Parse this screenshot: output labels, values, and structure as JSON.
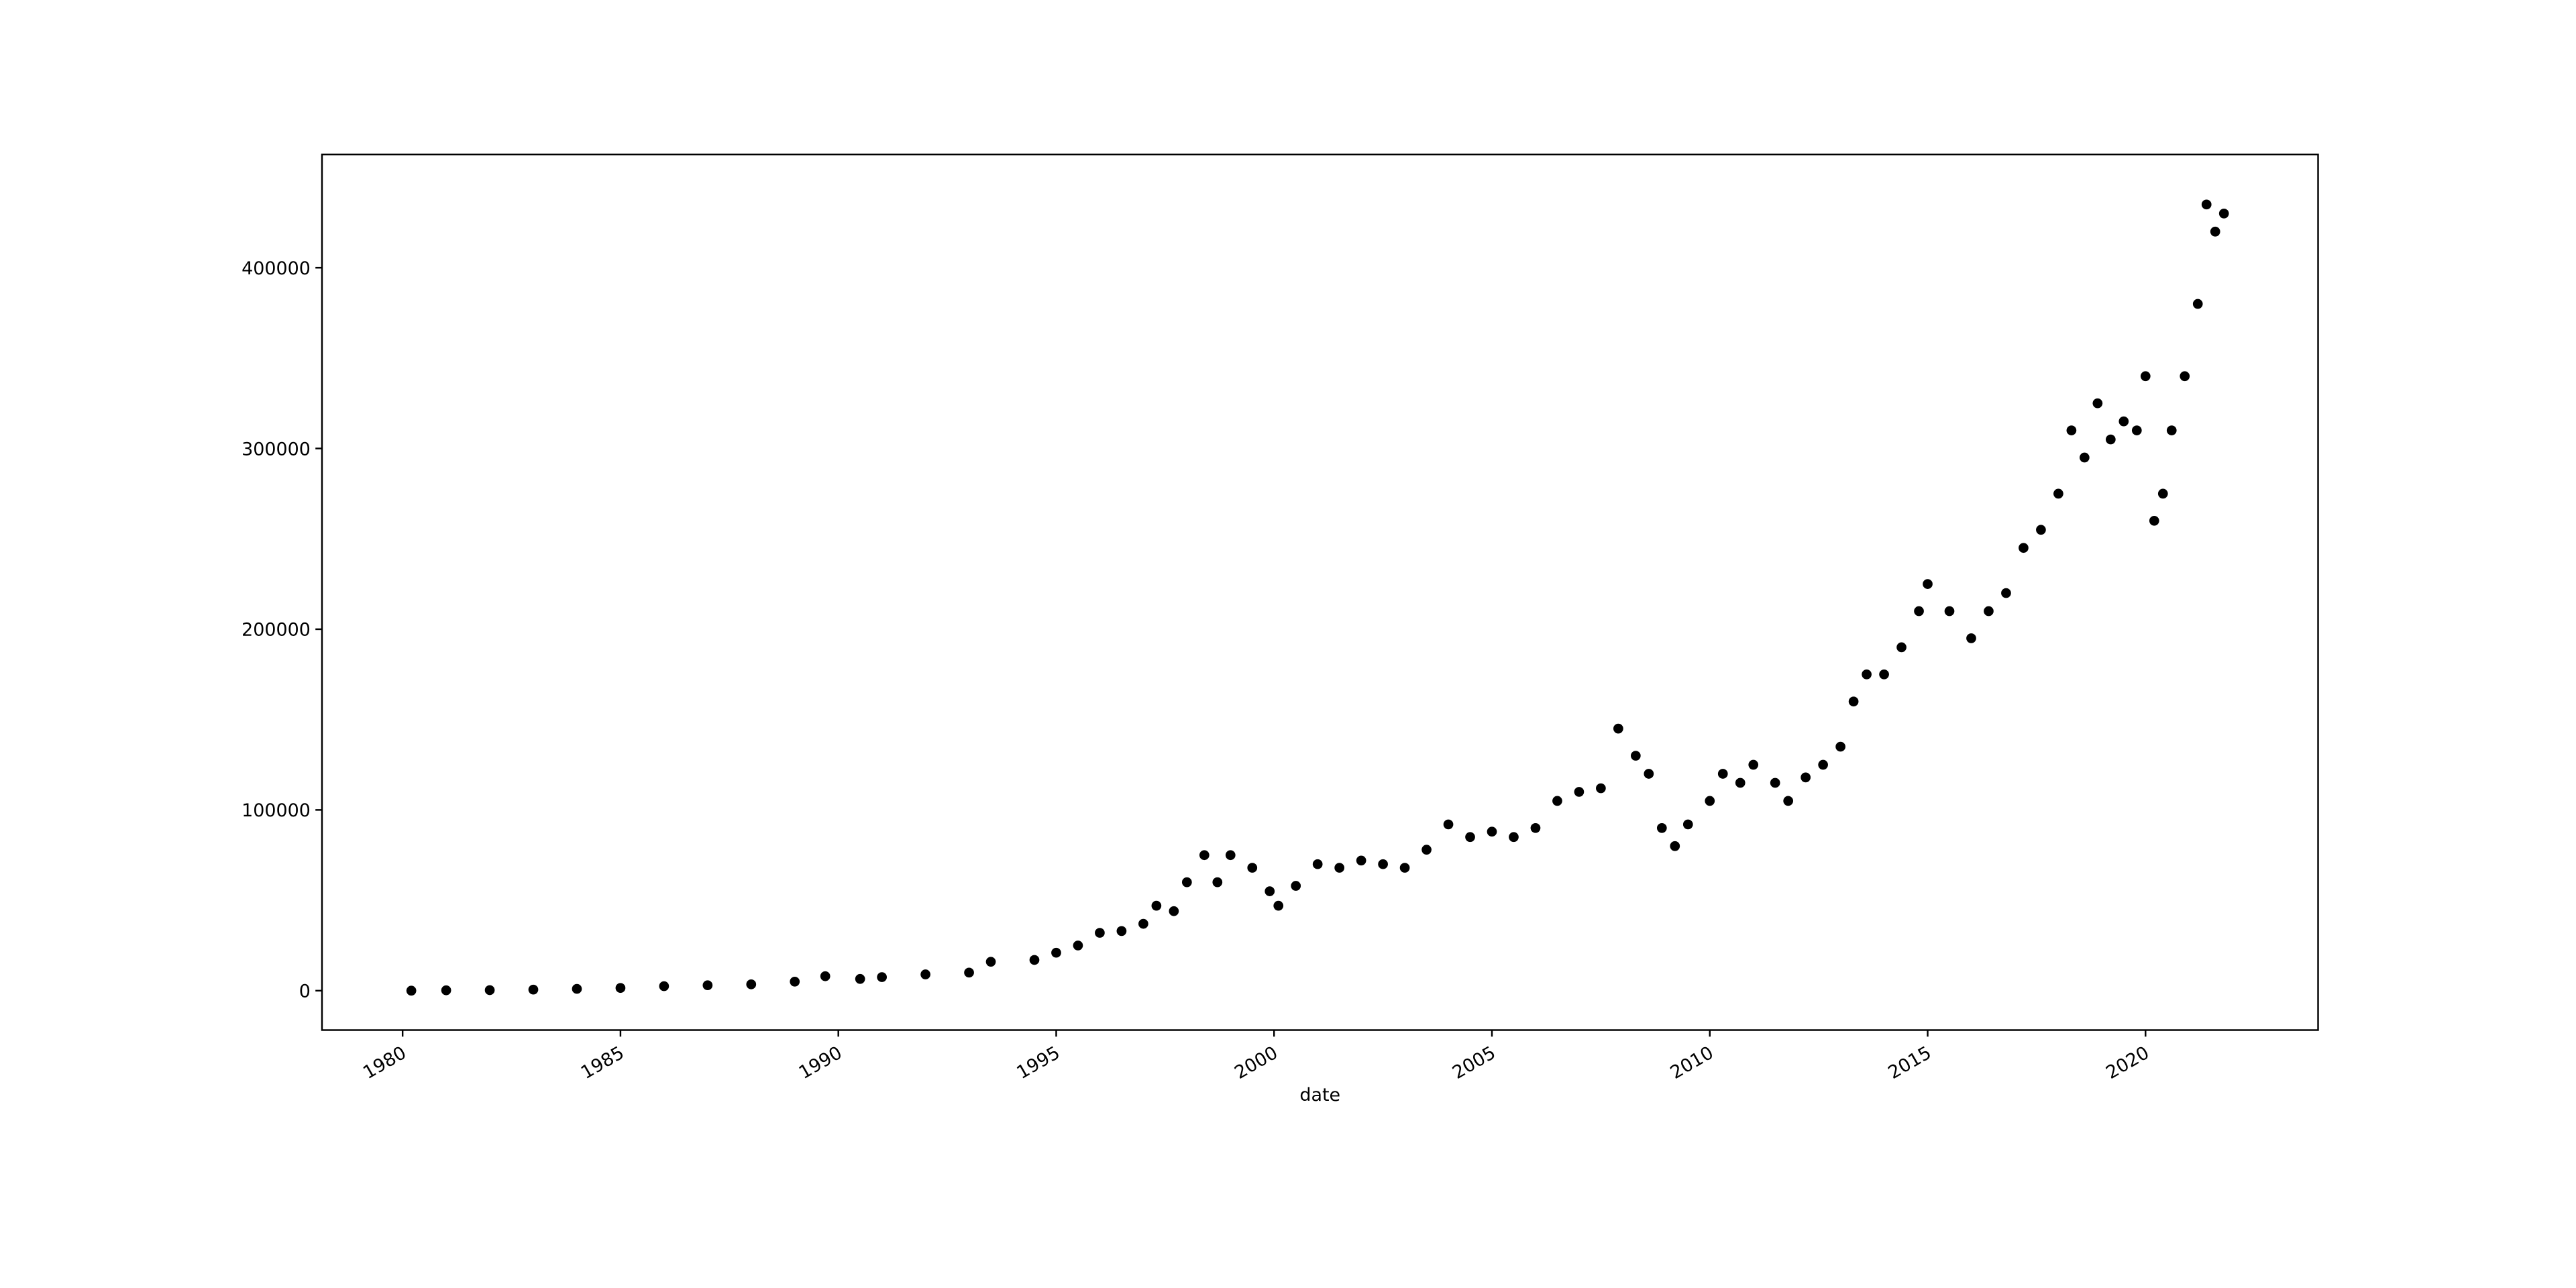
{
  "chart_data": {
    "type": "scatter",
    "x_label": "date",
    "color": "#000000",
    "x": [
      1980.2,
      1981,
      1982,
      1983,
      1984,
      1985,
      1986,
      1987,
      1988,
      1989,
      1989.7,
      1990.5,
      1991,
      1992,
      1993,
      1993.5,
      1994.5,
      1995,
      1995.5,
      1996,
      1996.5,
      1997,
      1997.3,
      1997.7,
      1998,
      1998.4,
      1998.7,
      1999,
      1999.5,
      1999.9,
      2000.1,
      2000.5,
      2001,
      2001.5,
      2002,
      2002.5,
      2003,
      2003.5,
      2004,
      2004.5,
      2005,
      2005.5,
      2006,
      2006.5,
      2007,
      2007.5,
      2007.9,
      2008.3,
      2008.6,
      2008.9,
      2009.2,
      2009.5,
      2010,
      2010.3,
      2010.7,
      2011,
      2011.5,
      2011.8,
      2012.2,
      2012.6,
      2013,
      2013.3,
      2013.6,
      2014,
      2014.4,
      2014.8,
      2015,
      2015.5,
      2016,
      2016.4,
      2016.8,
      2017.2,
      2017.6,
      2018,
      2018.3,
      2018.6,
      2018.9,
      2019.2,
      2019.5,
      2019.8,
      2020,
      2020.2,
      2020.4,
      2020.6,
      2020.9,
      2021.2,
      2021.4,
      2021.6,
      2021.8
    ],
    "values": [
      0,
      200,
      300,
      600,
      1000,
      1500,
      2500,
      3000,
      3500,
      5000,
      8000,
      6500,
      7500,
      9000,
      10000,
      16000,
      17000,
      21000,
      25000,
      32000,
      33000,
      37000,
      47000,
      44000,
      60000,
      75000,
      60000,
      75000,
      68000,
      55000,
      47000,
      58000,
      70000,
      68000,
      72000,
      70000,
      68000,
      78000,
      92000,
      85000,
      88000,
      85000,
      90000,
      105000,
      110000,
      112000,
      145000,
      130000,
      120000,
      90000,
      80000,
      92000,
      105000,
      120000,
      115000,
      125000,
      115000,
      105000,
      118000,
      125000,
      135000,
      160000,
      175000,
      175000,
      190000,
      210000,
      225000,
      210000,
      195000,
      210000,
      220000,
      245000,
      255000,
      275000,
      310000,
      295000,
      325000,
      305000,
      315000,
      310000,
      340000,
      260000,
      275000,
      310000,
      340000,
      380000,
      435000,
      420000,
      430000
    ],
    "xlim": [
      1978.15,
      2023.96
    ],
    "xticks": [
      1980,
      1985,
      1990,
      1995,
      2000,
      2005,
      2010,
      2015,
      2020
    ],
    "ylim": [
      -21800,
      462700
    ],
    "yticks": [
      0,
      100000,
      200000,
      300000,
      400000
    ]
  }
}
